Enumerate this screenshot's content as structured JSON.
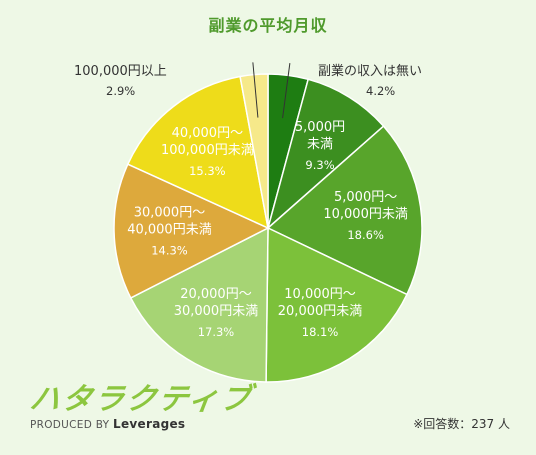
{
  "title": "副業の平均月収",
  "footnote": "※回答数：237 人",
  "logo": {
    "word": "ハタラクティブ",
    "produced_by": "PRODUCED BY",
    "company": "Leverages"
  },
  "chart_data": {
    "type": "pie",
    "title": "副業の平均月収",
    "start": "top",
    "direction": "clockwise",
    "slices": [
      {
        "label_lines": [
          "副業の収入は無い"
        ],
        "value": 4.2,
        "value_label": "4.2%",
        "color": "#1e7d12",
        "label_position": "outside"
      },
      {
        "label_lines": [
          "5,000円",
          "未満"
        ],
        "value": 9.3,
        "value_label": "9.3%",
        "color": "#3c8f20",
        "label_position": "inside"
      },
      {
        "label_lines": [
          "5,000円～",
          "10,000円未満"
        ],
        "value": 18.6,
        "value_label": "18.6%",
        "color": "#58a52b",
        "label_position": "inside"
      },
      {
        "label_lines": [
          "10,000円～",
          "20,000円未満"
        ],
        "value": 18.1,
        "value_label": "18.1%",
        "color": "#7cc13a",
        "label_position": "inside"
      },
      {
        "label_lines": [
          "20,000円～",
          "30,000円未満"
        ],
        "value": 17.3,
        "value_label": "17.3%",
        "color": "#a6d474",
        "label_position": "inside"
      },
      {
        "label_lines": [
          "30,000円～",
          "40,000円未満"
        ],
        "value": 14.3,
        "value_label": "14.3%",
        "color": "#dda93c",
        "label_position": "inside"
      },
      {
        "label_lines": [
          "40,000円～",
          "100,000円未満"
        ],
        "value": 15.3,
        "value_label": "15.3%",
        "color": "#eedc1a",
        "label_position": "inside"
      },
      {
        "label_lines": [
          "100,000円以上"
        ],
        "value": 2.9,
        "value_label": "2.9%",
        "color": "#f6e98a",
        "label_position": "outside"
      }
    ]
  }
}
